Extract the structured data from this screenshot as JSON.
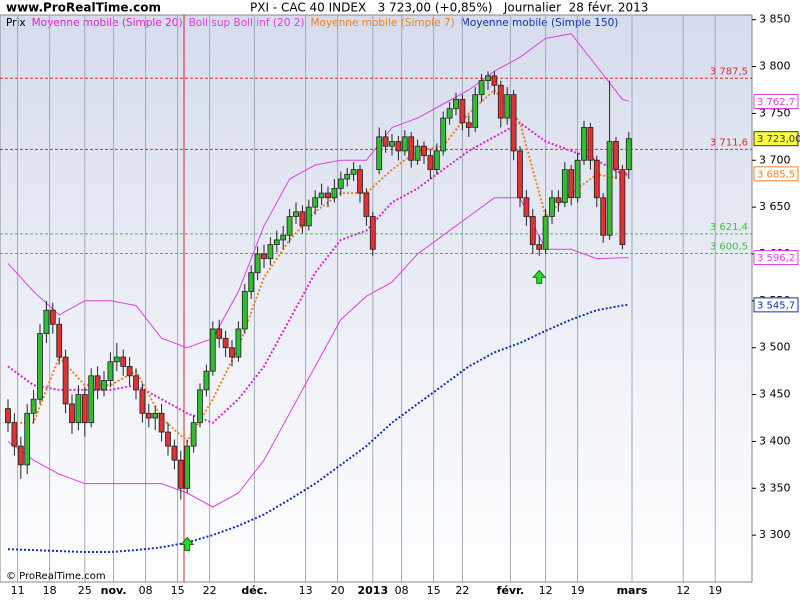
{
  "header": {
    "site": "www.ProRealTime.com",
    "title": "PXI - CAC 40 INDEX   3 723,00 (+0,85%)   Journalier  28 févr. 2013",
    "copyright": "© ProRealTime.com"
  },
  "chart_data": {
    "type": "candlestick",
    "xlim": [
      -1.25,
      116.25
    ],
    "ylim": [
      3250,
      3855
    ],
    "yticks": [
      {
        "value": 3300,
        "label": "3 300"
      },
      {
        "value": 3350,
        "label": "3 350"
      },
      {
        "value": 3400,
        "label": "3 400"
      },
      {
        "value": 3450,
        "label": "3 450"
      },
      {
        "value": 3500,
        "label": "3 500"
      },
      {
        "value": 3550,
        "label": "3 550"
      },
      {
        "value": 3600,
        "label": "3 600"
      },
      {
        "value": 3650,
        "label": "3 650"
      },
      {
        "value": 3700,
        "label": "3 700"
      },
      {
        "value": 3750,
        "label": "3 750"
      },
      {
        "value": 3800,
        "label": "3 800"
      },
      {
        "value": 3850,
        "label": "3 850"
      }
    ],
    "xticks": [
      {
        "value": 1.5,
        "label": "11"
      },
      {
        "value": 6.5,
        "label": "18"
      },
      {
        "value": 12,
        "label": "25"
      },
      {
        "value": 16.5,
        "label": "nov."
      },
      {
        "value": 21.5,
        "label": "08"
      },
      {
        "value": 26.5,
        "label": "15"
      },
      {
        "value": 31.5,
        "label": "22"
      },
      {
        "value": 38.5,
        "label": "déc."
      },
      {
        "value": 46.5,
        "label": "13"
      },
      {
        "value": 51.5,
        "label": "20"
      },
      {
        "value": 57,
        "label": "2013"
      },
      {
        "value": 61.5,
        "label": "08"
      },
      {
        "value": 66.5,
        "label": "15"
      },
      {
        "value": 71,
        "label": "22"
      },
      {
        "value": 78.5,
        "label": "févr."
      },
      {
        "value": 84,
        "label": "12"
      },
      {
        "value": 89,
        "label": "19"
      },
      {
        "value": 97.5,
        "label": "mars"
      },
      {
        "value": 105.5,
        "label": "12"
      },
      {
        "value": 110.5,
        "label": "19"
      }
    ],
    "marker_line_x": 27.5,
    "candles": {
      "name": "Prix",
      "up_color": "#33bb33",
      "down_color": "#dd3333",
      "open": [
        3435,
        3420,
        3395,
        3375,
        3430,
        3445,
        3515,
        3540,
        3525,
        3490,
        3440,
        3420,
        3450,
        3420,
        3470,
        3455,
        3465,
        3485,
        3490,
        3480,
        3470,
        3455,
        3430,
        3425,
        3430,
        3410,
        3395,
        3380,
        3350,
        3395,
        3420,
        3455,
        3475,
        3520,
        3510,
        3500,
        3490,
        3520,
        3560,
        3580,
        3600,
        3595,
        3610,
        3615,
        3620,
        3640,
        3645,
        3630,
        3650,
        3660,
        3665,
        3660,
        3670,
        3680,
        3685,
        3690,
        3665,
        3640,
        3690,
        3725,
        3715,
        3720,
        3710,
        3725,
        3700,
        3715,
        3705,
        3690,
        3710,
        3745,
        3755,
        3765,
        3740,
        3735,
        3770,
        3785,
        3790,
        3780,
        3745,
        3770,
        3710,
        3660,
        3640,
        3610,
        3605,
        3640,
        3660,
        3655,
        3690,
        3660,
        3700,
        3735,
        3700,
        3660,
        3620,
        3720,
        3690,
        3690
      ],
      "high": [
        3445,
        3430,
        3405,
        3440,
        3455,
        3525,
        3550,
        3548,
        3532,
        3498,
        3450,
        3460,
        3458,
        3478,
        3480,
        3475,
        3495,
        3505,
        3498,
        3490,
        3478,
        3462,
        3440,
        3438,
        3440,
        3420,
        3402,
        3390,
        3402,
        3428,
        3462,
        3482,
        3528,
        3530,
        3518,
        3508,
        3528,
        3568,
        3588,
        3608,
        3610,
        3618,
        3625,
        3630,
        3648,
        3655,
        3652,
        3658,
        3668,
        3675,
        3672,
        3680,
        3688,
        3692,
        3698,
        3695,
        3670,
        3645,
        3735,
        3732,
        3728,
        3726,
        3732,
        3730,
        3722,
        3720,
        3712,
        3718,
        3752,
        3762,
        3772,
        3770,
        3748,
        3778,
        3792,
        3795,
        3795,
        3785,
        3778,
        3775,
        3715,
        3668,
        3648,
        3620,
        3648,
        3668,
        3668,
        3698,
        3695,
        3708,
        3742,
        3740,
        3705,
        3665,
        3785,
        3725,
        3695,
        3730
      ],
      "low": [
        3410,
        3385,
        3360,
        3365,
        3420,
        3440,
        3505,
        3515,
        3482,
        3430,
        3408,
        3412,
        3405,
        3415,
        3445,
        3448,
        3458,
        3475,
        3470,
        3460,
        3445,
        3420,
        3415,
        3412,
        3400,
        3385,
        3370,
        3338,
        3345,
        3388,
        3415,
        3448,
        3470,
        3500,
        3490,
        3480,
        3485,
        3515,
        3552,
        3572,
        3585,
        3588,
        3602,
        3605,
        3612,
        3632,
        3622,
        3625,
        3642,
        3652,
        3650,
        3655,
        3662,
        3672,
        3678,
        3655,
        3630,
        3598,
        3685,
        3708,
        3705,
        3700,
        3705,
        3692,
        3695,
        3696,
        3680,
        3685,
        3705,
        3738,
        3748,
        3732,
        3725,
        3730,
        3762,
        3775,
        3770,
        3735,
        3738,
        3700,
        3650,
        3630,
        3600,
        3598,
        3600,
        3632,
        3645,
        3650,
        3652,
        3655,
        3695,
        3690,
        3650,
        3612,
        3615,
        3680,
        3605,
        3680
      ],
      "close": [
        3420,
        3395,
        3375,
        3430,
        3445,
        3515,
        3540,
        3525,
        3490,
        3440,
        3420,
        3450,
        3420,
        3470,
        3455,
        3465,
        3485,
        3490,
        3480,
        3470,
        3455,
        3430,
        3425,
        3430,
        3410,
        3395,
        3380,
        3350,
        3395,
        3420,
        3455,
        3475,
        3520,
        3510,
        3500,
        3490,
        3520,
        3560,
        3580,
        3600,
        3595,
        3610,
        3615,
        3620,
        3640,
        3645,
        3630,
        3650,
        3660,
        3665,
        3660,
        3670,
        3680,
        3685,
        3690,
        3665,
        3640,
        3605,
        3725,
        3715,
        3720,
        3710,
        3725,
        3700,
        3715,
        3705,
        3690,
        3710,
        3745,
        3755,
        3765,
        3740,
        3735,
        3770,
        3785,
        3790,
        3780,
        3745,
        3770,
        3710,
        3660,
        3640,
        3610,
        3605,
        3640,
        3660,
        3655,
        3690,
        3660,
        3700,
        3735,
        3700,
        3660,
        3620,
        3720,
        3690,
        3610,
        3723
      ]
    },
    "series": [
      {
        "name": "Moyenne mobile (Simple 20)",
        "color": "#e020d0",
        "x": [
          0,
          4,
          8,
          12,
          16,
          20,
          24,
          28,
          32,
          36,
          40,
          44,
          48,
          52,
          56,
          60,
          64,
          68,
          72,
          76,
          80,
          84,
          88,
          92,
          96,
          97
        ],
        "values": [
          3480,
          3460,
          3455,
          3455,
          3455,
          3460,
          3445,
          3430,
          3420,
          3445,
          3480,
          3530,
          3580,
          3615,
          3625,
          3655,
          3670,
          3690,
          3710,
          3725,
          3740,
          3720,
          3710,
          3700,
          3685,
          3686
        ]
      },
      {
        "name": "Boll sup Boll inf (20 2)",
        "color": "#e040e0",
        "x": [
          0,
          4,
          8,
          12,
          16,
          20,
          24,
          28,
          32,
          36,
          40,
          44,
          48,
          52,
          56,
          60,
          64,
          68,
          72,
          76,
          80,
          84,
          88,
          92,
          96,
          97
        ],
        "values": [
          3590,
          3560,
          3535,
          3550,
          3550,
          3545,
          3510,
          3500,
          3510,
          3560,
          3630,
          3680,
          3695,
          3700,
          3700,
          3735,
          3745,
          3760,
          3775,
          3795,
          3810,
          3830,
          3835,
          3800,
          3765,
          3763
        ],
        "values_lower": [
          3400,
          3380,
          3365,
          3355,
          3355,
          3355,
          3355,
          3345,
          3330,
          3345,
          3380,
          3430,
          3480,
          3530,
          3555,
          3570,
          3600,
          3620,
          3640,
          3660,
          3660,
          3605,
          3605,
          3595,
          3596,
          3596
        ]
      },
      {
        "name": "Moyenne mobile (Simple 7)",
        "color": "#f08020",
        "x": [
          0,
          4,
          8,
          12,
          16,
          20,
          24,
          28,
          32,
          36,
          40,
          44,
          48,
          52,
          56,
          60,
          64,
          68,
          72,
          76,
          80,
          84,
          88,
          92,
          96,
          97
        ],
        "values": [
          3420,
          3420,
          3490,
          3460,
          3460,
          3475,
          3425,
          3400,
          3445,
          3500,
          3575,
          3615,
          3645,
          3665,
          3665,
          3690,
          3710,
          3715,
          3750,
          3775,
          3740,
          3640,
          3665,
          3685,
          3680,
          3686
        ]
      },
      {
        "name": "Moyenne mobile (Simple 150)",
        "color": "#1030b0",
        "x": [
          0,
          4,
          8,
          12,
          16,
          20,
          24,
          28,
          32,
          36,
          40,
          44,
          48,
          52,
          56,
          60,
          64,
          68,
          72,
          76,
          80,
          84,
          88,
          92,
          96,
          97
        ],
        "values": [
          3285,
          3284,
          3283,
          3282,
          3282,
          3284,
          3287,
          3292,
          3300,
          3310,
          3322,
          3338,
          3355,
          3375,
          3395,
          3420,
          3440,
          3460,
          3480,
          3495,
          3505,
          3518,
          3530,
          3540,
          3545,
          3546
        ]
      }
    ],
    "levels": [
      {
        "value": 3787.5,
        "label": "3 787,5",
        "color": "#d03030"
      },
      {
        "value": 3711.6,
        "label": "3 711,6",
        "color": "#d03030"
      },
      {
        "value": 3621.4,
        "label": "3 621,4",
        "color": "#40c040"
      },
      {
        "value": 3600.5,
        "label": "3 600,5",
        "color": "#40c040"
      }
    ],
    "value_boxes": [
      {
        "value": 3762.7,
        "label": "3 762,7",
        "color": "#e040e0",
        "fill": "#ffffff"
      },
      {
        "value": 3723,
        "label": "3 723,00",
        "color": "#333333",
        "fill": "#ffff40"
      },
      {
        "value": 3685.5,
        "label": "3 685,5",
        "color": "#f08020",
        "fill": "#ffffff"
      },
      {
        "value": 3596.2,
        "label": "3 596,2",
        "color": "#e040e0",
        "fill": "#ffffff"
      },
      {
        "value": 3545.7,
        "label": "3 545,7",
        "color": "#1030b0",
        "fill": "#ffffff"
      }
    ],
    "signals": [
      {
        "x": 28,
        "value": 3290
      },
      {
        "x": 83,
        "value": 3575
      }
    ]
  }
}
